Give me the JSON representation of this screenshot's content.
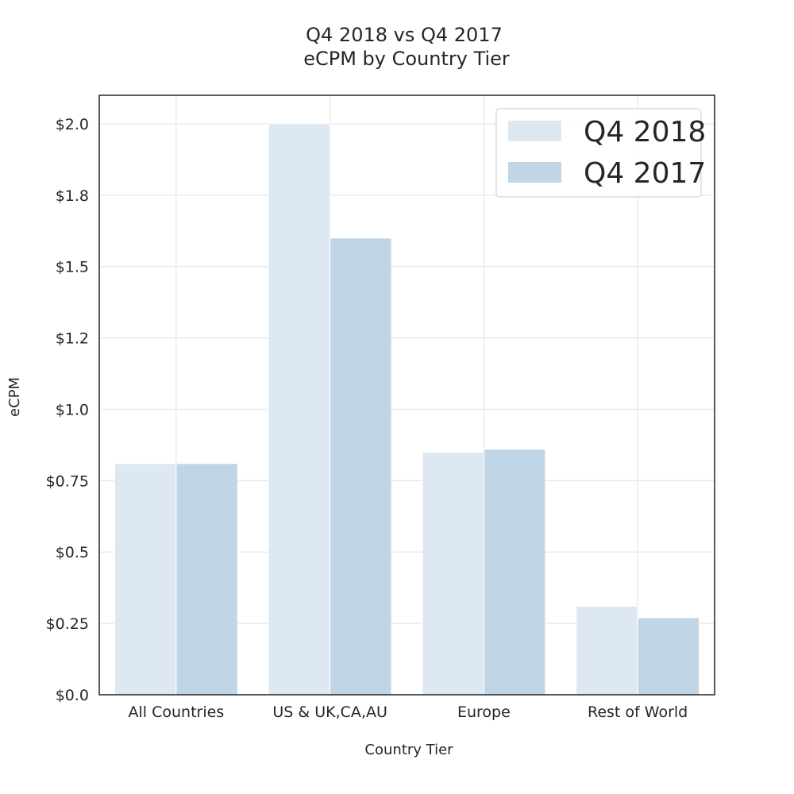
{
  "chart_data": {
    "type": "bar",
    "title": "Q4 2018 vs Q4 2017",
    "subtitle": "eCPM by Country Tier",
    "xlabel": "Country Tier",
    "ylabel": "eCPM",
    "categories": [
      "All Countries",
      "US & UK,CA,AU",
      "Europe",
      "Rest of World"
    ],
    "series": [
      {
        "name": "Q4 2018",
        "values": [
          0.81,
          2.0,
          0.85,
          0.31
        ],
        "color": "#dde8f3"
      },
      {
        "name": "Q4 2017",
        "values": [
          0.81,
          1.6,
          0.86,
          0.27
        ],
        "color": "#c0d6e6"
      }
    ],
    "ylim": [
      0,
      2.1
    ],
    "yticks": [
      0.0,
      0.25,
      0.5,
      0.75,
      1.0,
      1.25,
      1.5,
      1.75,
      2.0
    ],
    "ytick_labels": [
      "$0.0",
      "$0.25",
      "$0.5",
      "$0.75",
      "$1.0",
      "$1.2",
      "$1.5",
      "$1.8",
      "$2.0"
    ],
    "grid": true,
    "legend_position": "top-right"
  }
}
